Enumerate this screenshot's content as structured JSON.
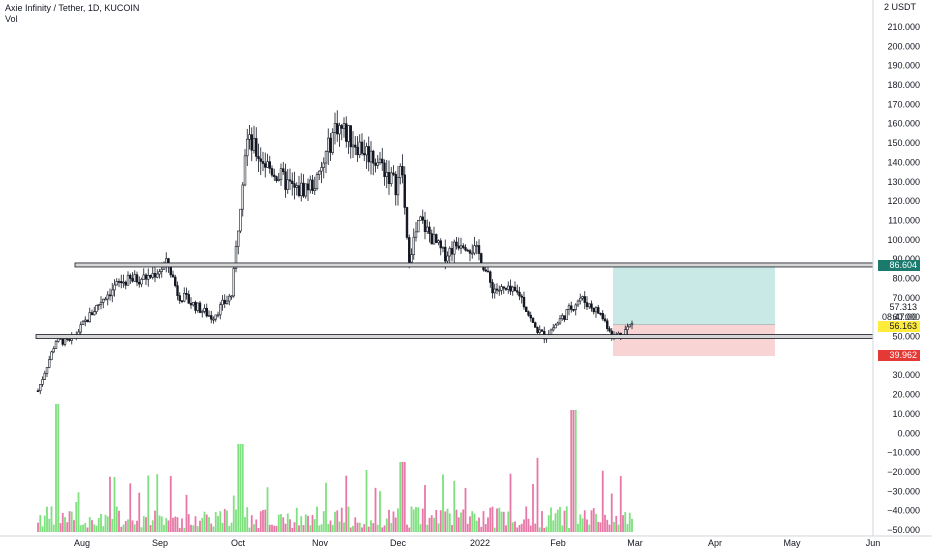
{
  "header": {
    "title": "Axie Infinity / Tether, 1D, KUCOIN",
    "indicator": "Vol"
  },
  "axis": {
    "currency": "USDT",
    "currency_prefix": "2"
  },
  "badges": {
    "target": "86.604",
    "last_price": "57.313",
    "countdown": "08:47:00",
    "entry": "56.163",
    "stop": "39.962"
  },
  "colors": {
    "up": "#26a69a",
    "down": "#ef5350",
    "vol_up": "#7ee07e",
    "vol_down": "#e878a8",
    "profit_zone": "#b2dfdb",
    "loss_zone": "#f8c9c9",
    "target_badge": "#1b7a6e",
    "entry_badge": "#ffeb3b",
    "stop_badge": "#e53935"
  },
  "chart_data": {
    "type": "candlestick",
    "pair": "AXS/USDT",
    "timeframe": "1D",
    "exchange": "KUCOIN",
    "y_ticks": [
      210,
      200,
      190,
      180,
      170,
      160,
      150,
      140,
      130,
      120,
      110,
      100,
      90,
      80,
      70,
      60,
      50,
      40,
      30,
      20,
      10,
      0,
      -10,
      -20,
      -30,
      -40,
      -50
    ],
    "x_ticks": [
      "Aug",
      "Sep",
      "Oct",
      "Nov",
      "Dec",
      "2022",
      "Feb",
      "Mar",
      "Apr",
      "May",
      "Jun"
    ],
    "series": [
      {
        "name": "",
        "x": [
          "Jul 22",
          "Aug 1",
          "Aug 10",
          "Aug 20",
          "Aug 28",
          "Sep 7",
          "Sep 14",
          "Sep 20",
          "Sep 26",
          "Oct 1",
          "Oct 3",
          "Oct 10",
          "Oct 20",
          "Oct 28",
          "Nov 5",
          "Nov 10",
          "Nov 20",
          "Nov 28",
          "Dec 3",
          "Dec 5",
          "Dec 10",
          "Dec 20",
          "Dec 28",
          "Jan 4",
          "Jan 10",
          "Jan 20",
          "Jan 25",
          "Feb 1",
          "Feb 8",
          "Feb 15",
          "Feb 20",
          "Feb 23",
          "Feb 27"
        ],
        "y": [
          22,
          48,
          47,
          70,
          78,
          81,
          88,
          72,
          60,
          72,
          152,
          138,
          125,
          130,
          160,
          150,
          140,
          128,
          138,
          90,
          110,
          92,
          100,
          92,
          75,
          72,
          55,
          50,
          70,
          62,
          50,
          52,
          57.3
        ]
      }
    ],
    "volume_note": "volume histogram on scale 10 to -50 (as labeled)",
    "levels": [
      {
        "label": "resistance",
        "value": 87
      },
      {
        "label": "support",
        "value": 50
      }
    ],
    "position": {
      "entry": 56.163,
      "target": 86.604,
      "stop": 39.962
    }
  }
}
